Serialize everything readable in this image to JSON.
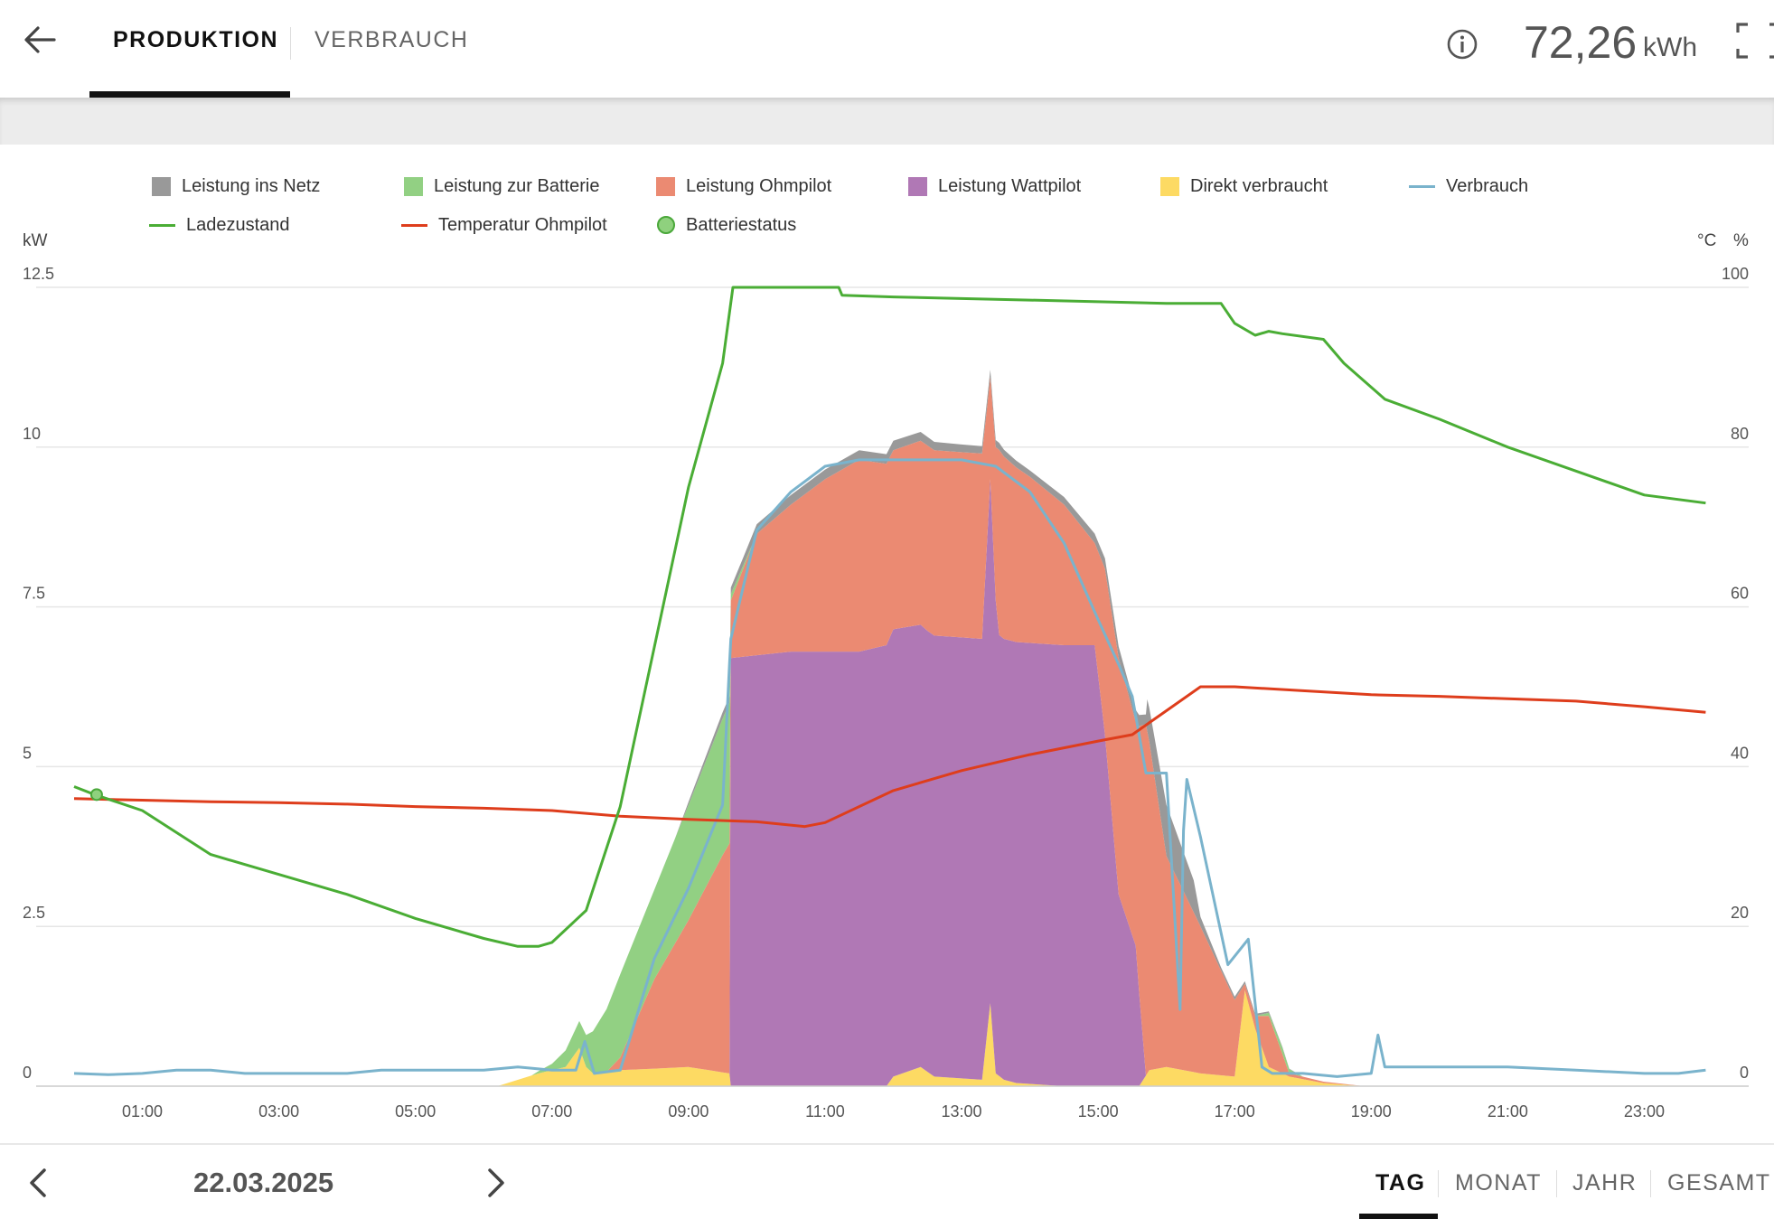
{
  "header": {
    "back_icon": "arrow-left-icon",
    "tabs": [
      {
        "label": "PRODUKTION",
        "active": true
      },
      {
        "label": "VERBRAUCH",
        "active": false
      }
    ],
    "info_icon": "info-circle-icon",
    "total_value": "72,26",
    "total_unit": "kWh",
    "fullscreen_icon": "fullscreen-icon"
  },
  "legend": [
    {
      "label": "Leistung ins Netz",
      "color": "#999999",
      "kind": "area"
    },
    {
      "label": "Leistung zur Batterie",
      "color": "#92d083",
      "kind": "area"
    },
    {
      "label": "Leistung Ohmpilot",
      "color": "#eb8a72",
      "kind": "area"
    },
    {
      "label": "Leistung Wattpilot",
      "color": "#b078b5",
      "kind": "area"
    },
    {
      "label": "Direkt verbraucht",
      "color": "#fdda63",
      "kind": "area"
    },
    {
      "label": "Verbrauch",
      "color": "#7ab3cc",
      "kind": "line"
    },
    {
      "label": "Ladezustand",
      "color": "#4aad35",
      "kind": "line"
    },
    {
      "label": "Temperatur Ohmpilot",
      "color": "#de3d1c",
      "kind": "line"
    },
    {
      "label": "Batteriestatus",
      "color": "#8fd17e",
      "kind": "marker"
    }
  ],
  "chart_data": {
    "type": "area",
    "y_left_label": "kW",
    "y_right_labels": [
      "°C",
      "%"
    ],
    "y_left_ticks": [
      "0",
      "2.5",
      "5",
      "7.5",
      "10",
      "12.5"
    ],
    "y_right_ticks": [
      "0",
      "20",
      "40",
      "60",
      "80",
      "100"
    ],
    "ylim_left": [
      0,
      12.5
    ],
    "ylim_right": [
      0,
      100
    ],
    "x_tick_labels": [
      "01:00",
      "03:00",
      "05:00",
      "07:00",
      "09:00",
      "11:00",
      "13:00",
      "15:00",
      "17:00",
      "19:00",
      "21:00",
      "23:00"
    ],
    "xlim_hours": [
      0,
      24
    ],
    "grid": true,
    "stack_order": [
      "Direkt verbraucht",
      "Leistung Wattpilot",
      "Leistung Ohmpilot",
      "Leistung zur Batterie",
      "Leistung ins Netz"
    ],
    "series": [
      {
        "name": "Direkt verbraucht",
        "color": "#fdda63",
        "axis": "left",
        "x": [
          0,
          6.2,
          6.8,
          7.2,
          7.4,
          7.5,
          7.6,
          8.0,
          9.0,
          9.6,
          9.62,
          11.9,
          12.0,
          12.4,
          12.6,
          13.3,
          13.42,
          13.5,
          13.62,
          13.8,
          14.5,
          15.6,
          15.75,
          16.0,
          16.5,
          17.0,
          17.15,
          17.3,
          17.5,
          17.8,
          18.3,
          18.9,
          24
        ],
        "values": [
          0,
          0,
          0.2,
          0.3,
          0.6,
          0.3,
          0.2,
          0.25,
          0.3,
          0.2,
          0,
          0,
          0.15,
          0.3,
          0.15,
          0.1,
          1.3,
          0.2,
          0.1,
          0.05,
          0,
          0,
          0.25,
          0.3,
          0.2,
          0.15,
          1.5,
          0.9,
          0.3,
          0.15,
          0.05,
          0,
          0
        ]
      },
      {
        "name": "Leistung Wattpilot",
        "color": "#b078b5",
        "axis": "left",
        "x": [
          0,
          9.6,
          9.62,
          10.5,
          11.5,
          11.9,
          12.0,
          12.5,
          13.0,
          13.3,
          13.42,
          13.55,
          14.0,
          14.5,
          14.95,
          15.1,
          15.3,
          15.55,
          15.7,
          24
        ],
        "values": [
          0,
          0,
          6.7,
          6.8,
          6.8,
          6.9,
          7.0,
          6.9,
          6.9,
          6.9,
          8.2,
          6.9,
          6.9,
          6.9,
          6.9,
          5.5,
          3.0,
          2.2,
          0,
          0
        ]
      },
      {
        "name": "Leistung Ohmpilot",
        "color": "#eb8a72",
        "axis": "left",
        "x": [
          0,
          7.8,
          8.0,
          8.5,
          9.0,
          9.5,
          9.6,
          9.62,
          10.0,
          10.5,
          11.0,
          11.5,
          12.0,
          12.5,
          13.0,
          13.3,
          13.42,
          13.55,
          14.0,
          14.5,
          14.95,
          15.1,
          15.3,
          15.55,
          15.7,
          16.0,
          16.5,
          17.0,
          17.15,
          17.3,
          17.5,
          17.8,
          18.3,
          18.9,
          24
        ],
        "values": [
          0,
          0,
          0.2,
          1.4,
          2.3,
          3.4,
          3.6,
          0.9,
          1.9,
          2.3,
          2.7,
          3.0,
          2.8,
          2.9,
          2.9,
          2.9,
          1.6,
          2.9,
          2.6,
          2.2,
          1.6,
          2.6,
          3.7,
          3.5,
          5.5,
          3.3,
          2.3,
          1.2,
          0.1,
          0.2,
          0.8,
          0.05,
          0.02,
          0,
          0
        ]
      },
      {
        "name": "Leistung zur Batterie",
        "color": "#92d083",
        "axis": "left",
        "x": [
          0,
          6.7,
          7.0,
          7.5,
          8.0,
          8.5,
          9.0,
          9.3,
          9.6,
          9.62,
          9.8,
          10.0,
          17.3,
          17.5,
          17.7,
          18.0,
          24
        ],
        "values": [
          0,
          0,
          0.1,
          0.5,
          1.3,
          1.4,
          1.8,
          2.0,
          2.2,
          0.1,
          0.05,
          0,
          0,
          0.05,
          0.1,
          0,
          0
        ]
      },
      {
        "name": "Leistung ins Netz",
        "color": "#999999",
        "axis": "left",
        "x": [
          0,
          8.8,
          9.0,
          9.5,
          9.6,
          10.0,
          11.0,
          12.0,
          13.0,
          14.0,
          14.5,
          15.0,
          15.5,
          15.7,
          15.72,
          16.0,
          16.4,
          16.5,
          16.8,
          17.0,
          17.5,
          18.0,
          24
        ],
        "values": [
          0,
          0,
          0.05,
          0.1,
          0.1,
          0.15,
          0.15,
          0.15,
          0.12,
          0.1,
          0.12,
          0.15,
          0.2,
          0.15,
          0.5,
          0.8,
          0.5,
          0.15,
          0.05,
          0.05,
          0.02,
          0,
          0
        ]
      },
      {
        "name": "Verbrauch",
        "color": "#7ab3cc",
        "axis": "left",
        "x": [
          0,
          0.5,
          1.0,
          1.5,
          2.0,
          2.5,
          3.0,
          3.5,
          4.0,
          4.5,
          5.0,
          5.5,
          6.0,
          6.5,
          7.0,
          7.35,
          7.48,
          7.62,
          8.0,
          8.5,
          9.0,
          9.5,
          9.6,
          9.62,
          10.0,
          10.5,
          11.0,
          11.5,
          12.0,
          12.5,
          13.0,
          13.5,
          14.0,
          14.5,
          15.0,
          15.3,
          15.5,
          15.7,
          15.72,
          16.0,
          16.2,
          16.25,
          16.3,
          16.5,
          16.9,
          17.2,
          17.4,
          17.55,
          18.0,
          18.5,
          19.0,
          19.1,
          19.2,
          19.3,
          19.5,
          20.0,
          21.0,
          22.0,
          23.0,
          23.5,
          23.9
        ],
        "values": [
          0.2,
          0.18,
          0.2,
          0.25,
          0.25,
          0.2,
          0.2,
          0.2,
          0.2,
          0.25,
          0.25,
          0.25,
          0.25,
          0.3,
          0.25,
          0.25,
          0.7,
          0.2,
          0.25,
          2.0,
          3.1,
          4.4,
          6.6,
          7.0,
          8.7,
          9.3,
          9.7,
          9.8,
          9.8,
          9.8,
          9.8,
          9.7,
          9.3,
          8.5,
          7.3,
          6.6,
          6.1,
          4.9,
          4.9,
          4.9,
          1.2,
          4.0,
          4.8,
          3.9,
          1.9,
          2.3,
          0.3,
          0.2,
          0.2,
          0.15,
          0.2,
          0.8,
          0.3,
          0.3,
          0.3,
          0.3,
          0.3,
          0.25,
          0.2,
          0.2,
          0.25
        ]
      },
      {
        "name": "Ladezustand",
        "color": "#4aad35",
        "axis": "right",
        "x": [
          0,
          0.3,
          1.0,
          2.0,
          3.0,
          4.0,
          5.0,
          6.0,
          6.5,
          6.8,
          7.0,
          7.5,
          8.0,
          8.5,
          9.0,
          9.5,
          9.65,
          11.2,
          11.25,
          12.0,
          13.0,
          14.0,
          15.0,
          16.0,
          16.8,
          17.0,
          17.3,
          17.5,
          17.7,
          18.3,
          18.6,
          19.0,
          19.2,
          20.0,
          21.0,
          22.0,
          23.0,
          23.9
        ],
        "values": [
          37.5,
          36.5,
          34.5,
          29.0,
          26.5,
          24.0,
          21.0,
          18.5,
          17.5,
          17.5,
          18.0,
          22.0,
          35.0,
          55.0,
          75.0,
          90.5,
          100,
          100,
          99.0,
          98.8,
          98.6,
          98.4,
          98.2,
          98.0,
          98.0,
          95.5,
          94.0,
          94.5,
          94.2,
          93.5,
          90.5,
          87.5,
          86.0,
          83.5,
          80.0,
          77.0,
          74.0,
          73.0
        ]
      },
      {
        "name": "Temperatur Ohmpilot",
        "color": "#de3d1c",
        "axis": "right",
        "x": [
          0,
          1,
          2,
          3,
          4,
          5,
          6,
          7,
          8,
          9,
          10,
          10.7,
          11,
          12,
          13,
          14,
          15,
          15.5,
          16,
          16.5,
          17,
          18,
          19,
          20,
          21,
          22,
          23,
          23.9
        ],
        "values": [
          36.0,
          35.8,
          35.6,
          35.5,
          35.3,
          35.0,
          34.8,
          34.5,
          33.8,
          33.4,
          33.1,
          32.5,
          33.0,
          37.0,
          39.5,
          41.5,
          43.2,
          44.0,
          47.0,
          50.0,
          50.0,
          49.5,
          49.0,
          48.8,
          48.5,
          48.2,
          47.5,
          46.8
        ]
      }
    ],
    "markers": [
      {
        "name": "Batteriestatus",
        "x": 0.33,
        "y": 36.5,
        "axis": "right"
      }
    ]
  },
  "footer": {
    "prev_icon": "chevron-left-icon",
    "next_icon": "chevron-right-icon",
    "date": "22.03.2025",
    "periods": [
      "TAG",
      "MONAT",
      "JAHR",
      "GESAMT"
    ],
    "active_period": "TAG"
  }
}
